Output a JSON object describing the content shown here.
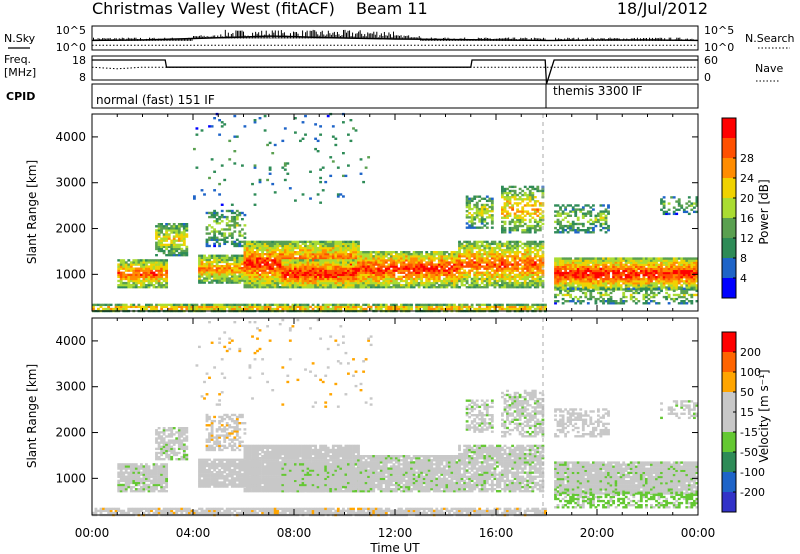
{
  "header": {
    "title": "Christmas Valley West (fitACF)",
    "beam": "Beam 11",
    "date": "18/Jul/2012"
  },
  "labels": {
    "nsky": "N.Sky",
    "nsearch": "N.Search",
    "freq_line1": "Freq.",
    "freq_line2": "[MHz]",
    "nave": "Nave",
    "cpid": "CPID",
    "cpid_mode1": "normal (fast) 151 IF",
    "cpid_mode2": "themis 3300 IF"
  },
  "colors": {
    "power_scale": [
      "#0000ff",
      "#1e64c8",
      "#2e8b57",
      "#5aa050",
      "#aadc32",
      "#f0d200",
      "#ff8c00",
      "#ff5000",
      "#ff0000"
    ],
    "velocity_scale": [
      "#3232c8",
      "#1e64c8",
      "#2e8b57",
      "#64c832",
      "#c8c8c8",
      "#c8c8c8",
      "#ffa500",
      "#ff6400",
      "#ff0000"
    ]
  },
  "chart_data": [
    {
      "type": "line",
      "panel": "noise",
      "yticks_left": [
        "10^5",
        "10^0"
      ],
      "yticks_right": [
        "10^5",
        "10^0"
      ],
      "series": [
        {
          "name": "N.Sky",
          "x": [
            0,
            2,
            4,
            6,
            7,
            8,
            9,
            10,
            12,
            14,
            16,
            18,
            18.3,
            20,
            22,
            24
          ],
          "values": [
            2.0,
            2.1,
            2.4,
            2.7,
            2.9,
            2.8,
            2.6,
            2.5,
            2.3,
            2.2,
            2.1,
            2.0,
            2.0,
            2.1,
            2.1,
            2.0
          ]
        },
        {
          "name": "N.Search",
          "x": [
            0,
            24
          ],
          "values": [
            1.0,
            1.0
          ]
        }
      ]
    },
    {
      "type": "line",
      "panel": "frequency",
      "yticks_left": [
        "18",
        "8"
      ],
      "yticks_right": [
        "60",
        "0"
      ],
      "series": [
        {
          "name": "Freq.",
          "x": [
            0,
            2.9,
            2.95,
            15.0,
            15.05,
            17.95,
            18.0,
            18.3,
            24
          ],
          "values": [
            18,
            18,
            15,
            15,
            18,
            18,
            8,
            18,
            18
          ]
        },
        {
          "name": "Nave",
          "x": [
            0,
            1,
            2,
            24
          ],
          "values": [
            32,
            28,
            32,
            32
          ]
        }
      ]
    },
    {
      "type": "heatmap",
      "panel": "power",
      "ylabel": "Slant Range [km]",
      "yticks": [
        "1000",
        "2000",
        "3000",
        "4000"
      ],
      "ylim": [
        200,
        4500
      ],
      "xlim": [
        0,
        24
      ],
      "colorbar_label": "Power [dB]",
      "colorbar_ticks": [
        "4",
        "8",
        "12",
        "16",
        "20",
        "24",
        "28"
      ],
      "clim": [
        0,
        32
      ]
    },
    {
      "type": "heatmap",
      "panel": "velocity",
      "ylabel": "Slant Range [km]",
      "yticks": [
        "1000",
        "2000",
        "3000",
        "4000"
      ],
      "ylim": [
        200,
        4500
      ],
      "xlim": [
        0,
        24
      ],
      "xlabel": "Time UT",
      "xticks": [
        "00:00",
        "04:00",
        "08:00",
        "12:00",
        "16:00",
        "20:00",
        "00:00"
      ],
      "colorbar_label": "Velocity [m s⁻¹]",
      "colorbar_ticks": [
        "200",
        "100",
        "50",
        "15",
        "-15",
        "-50",
        "-100",
        "-200"
      ],
      "clim": [
        -250,
        250
      ]
    }
  ]
}
